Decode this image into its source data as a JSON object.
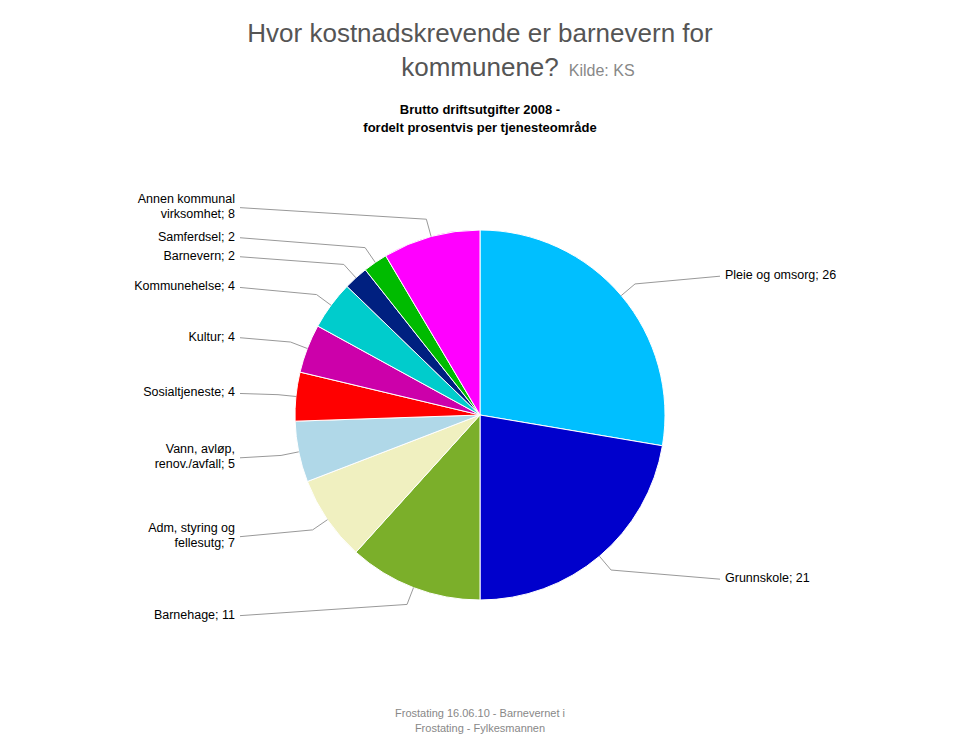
{
  "chart_data": {
    "type": "pie",
    "title": "Hvor kostnadskrevende er barnevern for\nkommunene?",
    "source": "Kilde: KS",
    "subtitle": "Brutto driftsutgifter 2008 -\nfordelt prosentvis per tjenesteområde",
    "footer": "Frostating 16.06.10 - Barnevernet i\nFrostating - Fylkesmannen",
    "categories": [
      "Pleie og omsorg; 26",
      "Grunnskole; 21",
      "Barnehage; 11",
      "Adm, styring og\nfellesutg; 7",
      "Vann, avløp,\nrenov./avfall; 5",
      "Sosialtjeneste; 4",
      "Kultur; 4",
      "Kommunehelse; 4",
      "Barnevern; 2",
      "Samferdsel; 2",
      "Annen kommunal\nvirksomhet; 8"
    ],
    "values": [
      26,
      21,
      11,
      7,
      5,
      4,
      4,
      4,
      2,
      2,
      8
    ],
    "colors": [
      "#00BFFF",
      "#0000CC",
      "#7BAF2A",
      "#F0F0C0",
      "#B0D8E8",
      "#FF0000",
      "#CC00AA",
      "#00CCCC",
      "#002080",
      "#00BB00",
      "#FF00FF"
    ]
  }
}
